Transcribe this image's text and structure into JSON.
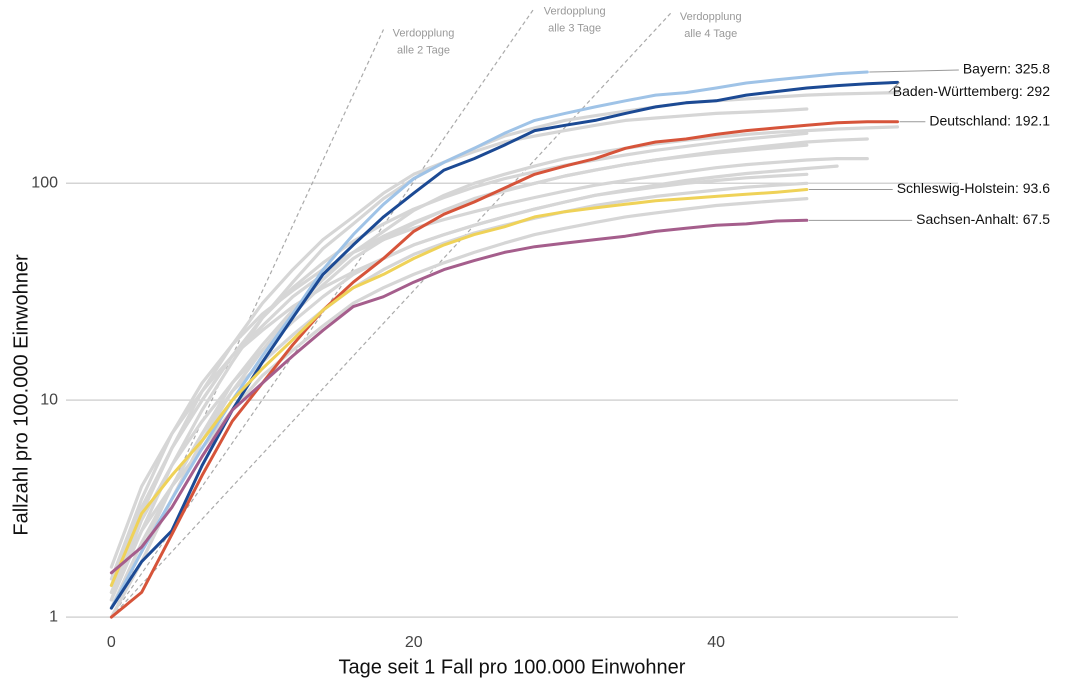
{
  "chart_data": {
    "type": "line",
    "x_label": "Tage seit 1 Fall pro 100.000 Einwohner",
    "y_label": "Fallzahl pro 100.000 Einwohner",
    "yscale": "log",
    "grid": "y",
    "xlim": [
      -3,
      56
    ],
    "ylim": [
      0.9,
      700
    ],
    "xticks": [
      0,
      20,
      40
    ],
    "yticks": [
      1,
      10,
      100
    ],
    "x": [
      0,
      2,
      4,
      6,
      8,
      10,
      12,
      14,
      16,
      18,
      20,
      22,
      24,
      26,
      28,
      30,
      32,
      34,
      36,
      38,
      40,
      42,
      44,
      46,
      48,
      50,
      52
    ],
    "reference_lines": [
      {
        "doubling_days": 2,
        "x_end": 18,
        "label": [
          "Verdopplung",
          "alle 2 Tage"
        ]
      },
      {
        "doubling_days": 3,
        "x_end": 28,
        "label": [
          "Verdopplung",
          "alle 3 Tage"
        ]
      },
      {
        "doubling_days": 4,
        "x_end": 37,
        "label": [
          "Verdopplung",
          "alle 4 Tage"
        ]
      }
    ],
    "series": [
      {
        "color": "#d6d6d6",
        "values": [
          1.2,
          2.5,
          5,
          9,
          15,
          24,
          35,
          50,
          65,
          85,
          105,
          125,
          145,
          165,
          180,
          195,
          205,
          215,
          225,
          235,
          240,
          245,
          250,
          255,
          258,
          260,
          262
        ]
      },
      {
        "color": "#d6d6d6",
        "values": [
          1.1,
          2.2,
          4,
          7,
          12,
          18,
          26,
          36,
          48,
          60,
          75,
          88,
          100,
          110,
          120,
          130,
          138,
          145,
          152,
          158,
          163,
          168,
          172,
          175,
          178,
          180,
          182
        ]
      },
      {
        "color": "#d6d6d6",
        "values": [
          1.3,
          3,
          6,
          10,
          16,
          22,
          30,
          38,
          48,
          57,
          66,
          75,
          84,
          92,
          100,
          108,
          115,
          122,
          128,
          134,
          140,
          145,
          150,
          155,
          158,
          160,
          null
        ]
      },
      {
        "color": "#d6d6d6",
        "values": [
          1.5,
          3.5,
          7,
          12,
          18,
          25,
          32,
          40,
          48,
          55,
          62,
          68,
          74,
          80,
          86,
          92,
          98,
          103,
          108,
          113,
          118,
          122,
          125,
          128,
          130,
          130,
          null
        ]
      },
      {
        "color": "#d6d6d6",
        "values": [
          1.2,
          2.8,
          5,
          8,
          12,
          17,
          23,
          30,
          38,
          45,
          52,
          58,
          64,
          70,
          76,
          82,
          88,
          93,
          98,
          103,
          107,
          111,
          114,
          117,
          120,
          null,
          null
        ]
      },
      {
        "color": "#d6d6d6",
        "values": [
          1.7,
          4,
          7,
          11,
          16,
          21,
          27,
          33,
          39,
          45,
          52,
          58,
          64,
          70,
          76,
          82,
          88,
          92,
          96,
          100,
          103,
          106,
          108,
          110,
          null,
          null,
          null
        ]
      },
      {
        "color": "#d6d6d6",
        "values": [
          1.1,
          2,
          4,
          7,
          11,
          15,
          20,
          26,
          33,
          40,
          47,
          53,
          59,
          64,
          69,
          74,
          79,
          83,
          87,
          90,
          93,
          96,
          98,
          100,
          null,
          null,
          null
        ]
      },
      {
        "color": "#d6d6d6",
        "values": [
          1.3,
          2.5,
          4,
          6,
          9,
          13,
          17,
          22,
          28,
          33,
          38,
          43,
          48,
          53,
          58,
          62,
          66,
          70,
          73,
          76,
          79,
          81,
          83,
          85,
          null,
          null,
          null
        ]
      },
      {
        "color": "#d6d6d6",
        "values": [
          1.2,
          3,
          6,
          11,
          18,
          28,
          40,
          55,
          70,
          90,
          110,
          125,
          140,
          155,
          165,
          175,
          185,
          195,
          200,
          205,
          210,
          213,
          216,
          220,
          null,
          null,
          null
        ]
      },
      {
        "color": "#d6d6d6",
        "values": [
          1.0,
          1.8,
          3.5,
          6.5,
          11,
          17,
          25,
          34,
          45,
          55,
          65,
          75,
          85,
          93,
          100,
          108,
          115,
          122,
          128,
          133,
          138,
          142,
          146,
          150,
          null,
          null,
          null
        ]
      },
      {
        "color": "#d6d6d6",
        "values": [
          1.4,
          3.2,
          6,
          10,
          16,
          24,
          33,
          43,
          54,
          65,
          76,
          86,
          96,
          105,
          113,
          121,
          128,
          135,
          142,
          148,
          154,
          160,
          165,
          170,
          null,
          null,
          null
        ]
      },
      {
        "name": "Bayern",
        "end_label": "Bayern: 325.8",
        "color": "#9fc3e7",
        "values": [
          1.1,
          2,
          3.5,
          6,
          10,
          16,
          25,
          40,
          58,
          80,
          105,
          125,
          145,
          170,
          195,
          210,
          225,
          240,
          255,
          262,
          275,
          290,
          300,
          310,
          320,
          325.8,
          null
        ]
      },
      {
        "name": "Baden-Württemberg",
        "end_label": "Baden-Württemberg: 292",
        "color": "#1c4a94",
        "values": [
          1.1,
          1.8,
          2.5,
          5,
          9,
          15,
          24,
          38,
          52,
          70,
          90,
          115,
          130,
          150,
          175,
          185,
          195,
          210,
          225,
          235,
          240,
          255,
          265,
          275,
          282,
          288,
          292
        ]
      },
      {
        "name": "Deutschland",
        "end_label": "Deutschland: 192.1",
        "color": "#d6543a",
        "values": [
          1.0,
          1.3,
          2.4,
          4.5,
          8,
          12,
          18,
          26,
          35,
          45,
          60,
          72,
          82,
          95,
          110,
          120,
          130,
          145,
          155,
          160,
          168,
          175,
          180,
          185,
          190,
          192,
          192.1
        ]
      },
      {
        "name": "Schleswig-Holstein",
        "end_label": "Schleswig-Holstein: 93.6",
        "color": "#efd258",
        "values": [
          1.4,
          3,
          4.5,
          6.5,
          10,
          14,
          19,
          26,
          33,
          38,
          45,
          52,
          58,
          63,
          70,
          74,
          77,
          80,
          83,
          85,
          87,
          89,
          91,
          93.6,
          null,
          null,
          null
        ]
      },
      {
        "name": "Sachsen-Anhalt",
        "end_label": "Sachsen-Anhalt: 67.5",
        "color": "#a55e8c",
        "values": [
          1.6,
          2.1,
          3.2,
          5.5,
          9,
          12,
          16,
          21,
          27,
          30,
          35,
          40,
          44,
          48,
          51,
          53,
          55,
          57,
          60,
          62,
          64,
          65,
          67,
          67.5,
          null,
          null,
          null
        ]
      }
    ]
  }
}
